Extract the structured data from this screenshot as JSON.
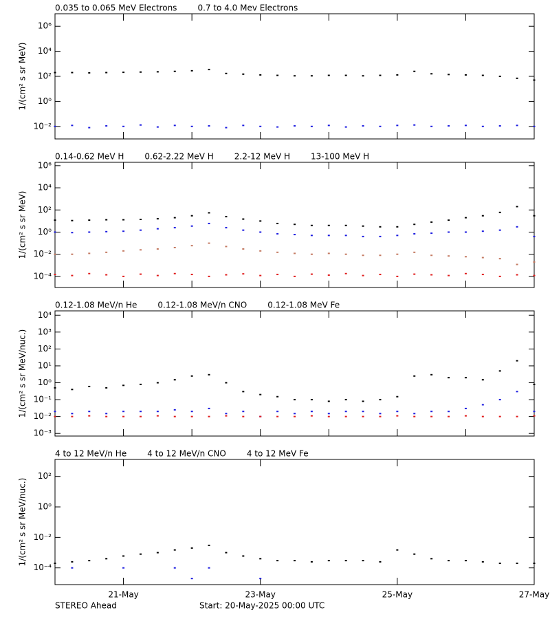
{
  "chart_data": [
    {
      "type": "scatter",
      "ylabel": "1/(cm² s sr MeV)",
      "log": true,
      "xlim": [
        0,
        7
      ],
      "xticks": [
        0,
        1,
        2,
        3,
        4,
        5,
        6,
        7
      ],
      "xtick_labels": false,
      "ylim": [
        0.001,
        10000000
      ],
      "yticks": [
        {
          "value": 0.01,
          "label": "10⁻²"
        },
        {
          "value": 1,
          "label": "10⁰"
        },
        {
          "value": 100,
          "label": "10²"
        },
        {
          "value": 10000,
          "label": "10⁴"
        },
        {
          "value": 1000000,
          "label": "10⁶"
        }
      ],
      "x": [
        0,
        0.25,
        0.5,
        0.75,
        1,
        1.25,
        1.5,
        1.75,
        2,
        2.25,
        2.5,
        2.75,
        3,
        3.25,
        3.5,
        3.75,
        4,
        4.25,
        4.5,
        4.75,
        5,
        5.25,
        5.5,
        5.75,
        6,
        6.25,
        6.5,
        6.75,
        7
      ],
      "series": [
        {
          "name": "0.035 to 0.065 MeV Electrons",
          "color": "#000000",
          "values": [
            200,
            200,
            190,
            200,
            210,
            220,
            230,
            250,
            280,
            350,
            170,
            150,
            130,
            120,
            110,
            110,
            120,
            120,
            110,
            120,
            130,
            250,
            160,
            140,
            130,
            120,
            100,
            70,
            50
          ]
        },
        {
          "name": "0.7 to 4.0 Mev Electrons",
          "color": "#1c1ce0",
          "values": [
            0.01,
            0.012,
            0.008,
            0.011,
            0.01,
            0.013,
            0.009,
            0.012,
            0.01,
            0.011,
            0.008,
            0.012,
            0.01,
            0.009,
            0.011,
            0.01,
            0.012,
            0.009,
            0.011,
            0.01,
            0.012,
            0.013,
            0.01,
            0.011,
            0.012,
            0.01,
            0.011,
            0.012,
            0.01
          ]
        }
      ]
    },
    {
      "type": "scatter",
      "ylabel": "1/(cm² s sr MeV)",
      "log": true,
      "xlim": [
        0,
        7
      ],
      "xticks": [
        0,
        1,
        2,
        3,
        4,
        5,
        6,
        7
      ],
      "xtick_labels": false,
      "ylim": [
        1e-05,
        2000000
      ],
      "yticks": [
        {
          "value": 0.0001,
          "label": "10⁻⁴"
        },
        {
          "value": 0.01,
          "label": "10⁻²"
        },
        {
          "value": 1,
          "label": "10⁰"
        },
        {
          "value": 100,
          "label": "10²"
        },
        {
          "value": 10000,
          "label": "10⁴"
        },
        {
          "value": 1000000,
          "label": "10⁶"
        }
      ],
      "x": [
        0,
        0.25,
        0.5,
        0.75,
        1,
        1.25,
        1.5,
        1.75,
        2,
        2.25,
        2.5,
        2.75,
        3,
        3.25,
        3.5,
        3.75,
        4,
        4.25,
        4.5,
        4.75,
        5,
        5.25,
        5.5,
        5.75,
        6,
        6.25,
        6.5,
        6.75,
        7
      ],
      "series": [
        {
          "name": "0.14-0.62 MeV H",
          "color": "#000000",
          "values": [
            12,
            11,
            12,
            13,
            13,
            14,
            16,
            20,
            30,
            55,
            25,
            15,
            10,
            6,
            5,
            4,
            4,
            4,
            3.5,
            3,
            3,
            5,
            8,
            12,
            20,
            30,
            60,
            200,
            30
          ]
        },
        {
          "name": "0.62-2.22 MeV H",
          "color": "#1c1ce0",
          "values": [
            1,
            0.9,
            1,
            1.1,
            1.2,
            1.5,
            2,
            2.5,
            3.5,
            6,
            2.5,
            1.5,
            1,
            0.7,
            0.6,
            0.5,
            0.5,
            0.5,
            0.4,
            0.4,
            0.5,
            0.7,
            0.8,
            1,
            1,
            1.2,
            1.5,
            3,
            0.4
          ]
        },
        {
          "name": "2.2-12 MeV H",
          "color": "#c47a62",
          "values": [
            0.01,
            0.01,
            0.012,
            0.015,
            0.02,
            0.025,
            0.03,
            0.04,
            0.06,
            0.1,
            0.05,
            0.03,
            0.02,
            0.015,
            0.012,
            0.01,
            0.012,
            0.01,
            0.008,
            0.008,
            0.01,
            0.015,
            0.008,
            0.007,
            0.006,
            0.005,
            0.004,
            0.0012,
            0.002
          ]
        },
        {
          "name": "13-100 MeV H",
          "color": "#e01c1c",
          "values": [
            0.00015,
            0.00012,
            0.00018,
            0.00014,
            0.0001,
            0.00016,
            0.00012,
            0.00018,
            0.00015,
            0.0001,
            0.00014,
            0.00017,
            0.00012,
            0.00015,
            0.0001,
            0.00016,
            0.00013,
            0.00018,
            0.00012,
            0.00015,
            0.0001,
            0.00016,
            0.00014,
            0.00012,
            0.00018,
            0.00015,
            0.0001,
            0.00014,
            0.00012
          ]
        }
      ]
    },
    {
      "type": "scatter",
      "ylabel": "1/(cm² s sr MeV/nuc.)",
      "log": true,
      "xlim": [
        0,
        7
      ],
      "xticks": [
        0,
        1,
        2,
        3,
        4,
        5,
        6,
        7
      ],
      "xtick_labels": false,
      "ylim": [
        0.0007,
        18000
      ],
      "yticks": [
        {
          "value": 0.001,
          "label": "10⁻³"
        },
        {
          "value": 0.01,
          "label": "10⁻²"
        },
        {
          "value": 0.1,
          "label": "10⁻¹"
        },
        {
          "value": 1,
          "label": "10⁰"
        },
        {
          "value": 10,
          "label": "10¹"
        },
        {
          "value": 100,
          "label": "10²"
        },
        {
          "value": 1000,
          "label": "10³"
        },
        {
          "value": 10000,
          "label": "10⁴"
        }
      ],
      "x": [
        0,
        0.25,
        0.5,
        0.75,
        1,
        1.25,
        1.5,
        1.75,
        2,
        2.25,
        2.5,
        2.75,
        3,
        3.25,
        3.5,
        3.75,
        4,
        4.25,
        4.5,
        4.75,
        5,
        5.25,
        5.5,
        5.75,
        6,
        6.25,
        6.5,
        6.75,
        7
      ],
      "series": [
        {
          "name": "0.12-1.08 MeV/n He",
          "color": "#000000",
          "values": [
            0.5,
            0.4,
            0.6,
            0.5,
            0.7,
            0.8,
            1,
            1.5,
            2.5,
            3,
            1,
            0.3,
            0.2,
            0.15,
            0.1,
            0.1,
            0.08,
            0.1,
            0.08,
            0.1,
            0.15,
            2.5,
            3,
            2,
            2,
            1.5,
            5,
            20,
            0.8
          ]
        },
        {
          "name": "0.12-1.08 MeV/n CNO",
          "color": "#1c1ce0",
          "values": [
            0.02,
            0.015,
            0.02,
            0.015,
            0.02,
            0.02,
            0.02,
            0.025,
            0.02,
            0.03,
            0.015,
            0.02,
            0.01,
            0.02,
            0.015,
            0.02,
            0.015,
            0.02,
            0.02,
            0.015,
            0.02,
            0.015,
            0.02,
            0.02,
            0.03,
            0.05,
            0.1,
            0.3,
            0.02
          ]
        },
        {
          "name": "0.12-1.08 MeV Fe",
          "color": "#e01c1c",
          "values": [
            0.01,
            0.01,
            0.011,
            0.01,
            0.01,
            0.01,
            0.011,
            0.01,
            0.01,
            0.01,
            0.011,
            0.01,
            0.01,
            0.01,
            0.01,
            0.011,
            0.01,
            0.01,
            0.01,
            0.01,
            0.011,
            0.01,
            0.01,
            0.01,
            0.011,
            0.01,
            0.01,
            0.01,
            0.011
          ]
        }
      ]
    },
    {
      "type": "scatter",
      "ylabel": "1/(cm² s sr MeV/nuc.)",
      "log": true,
      "xlim": [
        0,
        7
      ],
      "xticks": [
        {
          "value": 1,
          "label": "21-May"
        },
        {
          "value": 3,
          "label": "23-May"
        },
        {
          "value": 5,
          "label": "25-May"
        },
        {
          "value": 7,
          "label": "27-May"
        }
      ],
      "xtick_labels": true,
      "ylim": [
        8e-06,
        1300
      ],
      "yticks": [
        {
          "value": 0.0001,
          "label": "10⁻⁴"
        },
        {
          "value": 0.01,
          "label": "10⁻²"
        },
        {
          "value": 1,
          "label": "10⁰"
        },
        {
          "value": 100,
          "label": "10²"
        }
      ],
      "x": [
        0,
        0.25,
        0.5,
        0.75,
        1,
        1.25,
        1.5,
        1.75,
        2,
        2.25,
        2.5,
        2.75,
        3,
        3.25,
        3.5,
        3.75,
        4,
        4.25,
        4.5,
        4.75,
        5,
        5.25,
        5.5,
        5.75,
        6,
        6.25,
        6.5,
        6.75,
        7
      ],
      "series": [
        {
          "name": "4 to 12 MeV/n He",
          "color": "#000000",
          "values": [
            0.0002,
            0.00025,
            0.0003,
            0.0004,
            0.0006,
            0.0008,
            0.001,
            0.0015,
            0.002,
            0.003,
            0.001,
            0.0006,
            0.0004,
            0.0003,
            0.0003,
            0.00025,
            0.0003,
            0.0003,
            0.0003,
            0.00025,
            0.0015,
            0.0008,
            0.0004,
            0.0003,
            0.0003,
            0.00025,
            0.0002,
            0.0002,
            0.0002
          ]
        },
        {
          "name": "4 to 12 MeV/n CNO",
          "color": "#1c1ce0",
          "values": [
            null,
            0.0001,
            null,
            null,
            0.0001,
            null,
            null,
            0.0001,
            2e-05,
            0.0001,
            null,
            null,
            2e-05,
            null,
            null,
            null,
            null,
            null,
            null,
            null,
            null,
            null,
            null,
            null,
            null,
            null,
            null,
            null,
            null
          ]
        },
        {
          "name": "4 to 12 MeV Fe",
          "color": "#e01c1c",
          "values": [
            null,
            null,
            null,
            null,
            null,
            null,
            null,
            null,
            null,
            null,
            null,
            null,
            null,
            null,
            null,
            null,
            null,
            null,
            null,
            null,
            null,
            null,
            null,
            null,
            null,
            null,
            null,
            null,
            null
          ]
        }
      ]
    }
  ],
  "footer_left": "STEREO Ahead",
  "footer_center": "Start: 20-May-2025 00:00 UTC"
}
